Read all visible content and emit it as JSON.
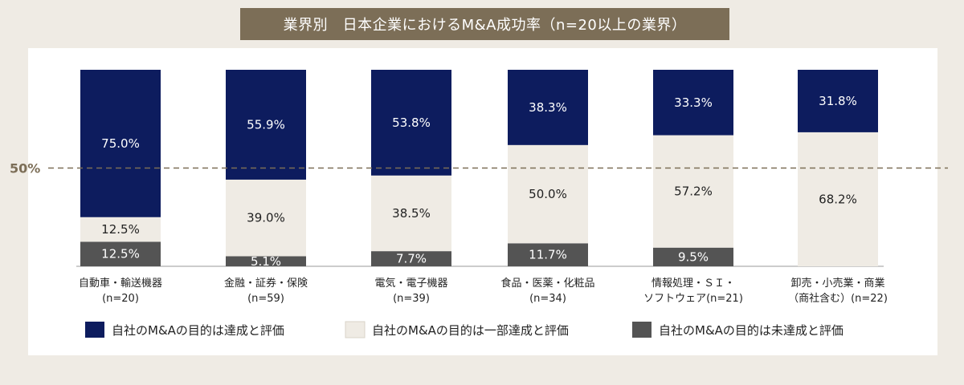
{
  "title": "業界別　日本企業におけるM&A成功率（n=20以上の業界）",
  "reference_line": {
    "label": "50%",
    "value": 50
  },
  "colors": {
    "achieved": "#0d1c5e",
    "partial": "#efebe4",
    "not_achieved": "#545454",
    "reference": "#7c6e57",
    "title_bg": "#7c6e57"
  },
  "chart_data": {
    "type": "bar",
    "stacked": true,
    "ylim": [
      0,
      100
    ],
    "categories": [
      [
        "自動車・輸送機器",
        "(n=20)"
      ],
      [
        "金融・証券・保険",
        "(n=59)"
      ],
      [
        "電気・電子機器",
        "(n=39)"
      ],
      [
        "食品・医薬・化粧品",
        "(n=34)"
      ],
      [
        "情報処理・ＳＩ・",
        "ソフトウェア(n=21)"
      ],
      [
        "卸売・小売業・商業",
        "（商社含む）(n=22)"
      ]
    ],
    "series": [
      {
        "name": "自社のM&Aの目的は未達成と評価",
        "values": [
          12.5,
          5.1,
          7.7,
          11.7,
          9.5,
          0
        ],
        "labels": [
          "12.5%",
          "5.1%",
          "7.7%",
          "11.7%",
          "9.5%",
          ""
        ]
      },
      {
        "name": "自社のM&Aの目的は一部達成と評価",
        "values": [
          12.5,
          39.0,
          38.5,
          50.0,
          57.2,
          68.2
        ],
        "labels": [
          "12.5%",
          "39.0%",
          "38.5%",
          "50.0%",
          "57.2%",
          "68.2%"
        ]
      },
      {
        "name": "自社のM&Aの目的は達成と評価",
        "values": [
          75.0,
          55.9,
          53.8,
          38.3,
          33.3,
          31.8
        ],
        "labels": [
          "75.0%",
          "55.9%",
          "53.8%",
          "38.3%",
          "33.3%",
          "31.8%"
        ]
      }
    ],
    "legend": [
      {
        "name": "自社のM&Aの目的は達成と評価",
        "color": "#0d1c5e"
      },
      {
        "name": "自社のM&Aの目的は一部達成と評価",
        "color": "#efebe4"
      },
      {
        "name": "自社のM&Aの目的は未達成と評価",
        "color": "#545454"
      }
    ]
  }
}
